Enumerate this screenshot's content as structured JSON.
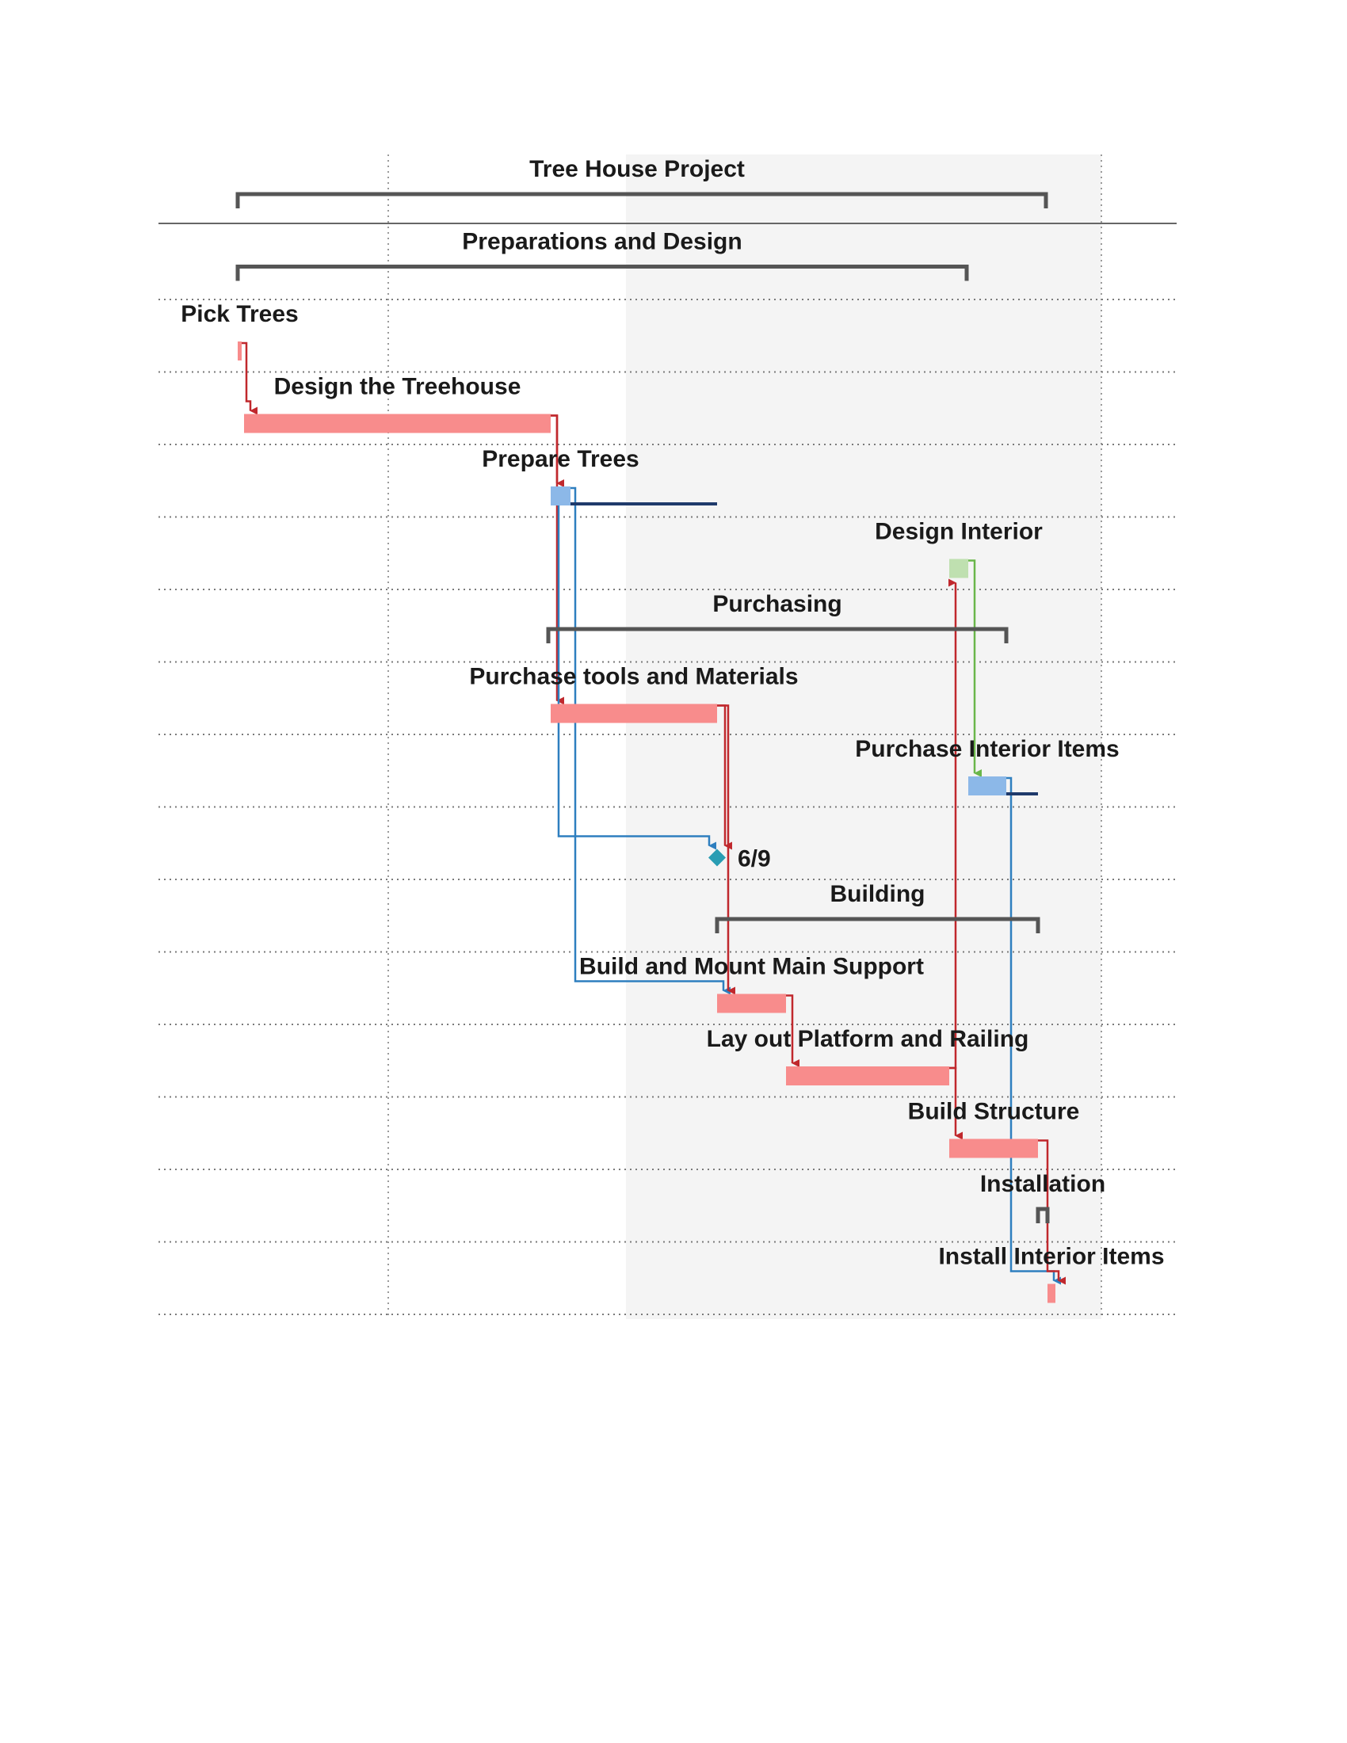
{
  "chart_data": {
    "type": "gantt",
    "title": "",
    "xlabel": "",
    "ylabel": "",
    "grid": true,
    "colors": {
      "critical_task": "#f88c8c",
      "noncritical_task": "#8cb8e8",
      "completed_task": "#bfe0b0",
      "summary": "#555555",
      "milestone": "#2a9db3",
      "critical_link": "#c0282d",
      "noncritical_link": "#2e7fbf",
      "interior_link": "#6ab64a",
      "slack": "#1f3a6b",
      "shade": "#f4f4f4"
    },
    "tasks": [
      {
        "id": "t1",
        "name": "Tree House Project",
        "kind": "summary",
        "start": 0.0,
        "end": 10.2
      },
      {
        "id": "t2",
        "name": "Preparations and Design",
        "kind": "summary",
        "start": 0.0,
        "end": 9.2
      },
      {
        "id": "t3",
        "name": "Pick Trees",
        "kind": "task",
        "critical": true,
        "start": 0.0,
        "end": 0.05
      },
      {
        "id": "t4",
        "name": "Design the Treehouse",
        "kind": "task",
        "critical": true,
        "start": 0.08,
        "end": 3.95
      },
      {
        "id": "t5",
        "name": "Prepare Trees",
        "kind": "task",
        "critical": false,
        "start": 3.95,
        "end": 4.2,
        "slack_end": 6.05
      },
      {
        "id": "t6",
        "name": "Design Interior",
        "kind": "task",
        "critical": false,
        "completed": true,
        "start": 8.98,
        "end": 9.22
      },
      {
        "id": "t7",
        "name": "Purchasing",
        "kind": "summary",
        "start": 3.92,
        "end": 9.7
      },
      {
        "id": "t8",
        "name": "Purchase tools and Materials",
        "kind": "task",
        "critical": true,
        "start": 3.95,
        "end": 6.05
      },
      {
        "id": "t9",
        "name": "Purchase Interior Items",
        "kind": "task",
        "critical": false,
        "start": 9.22,
        "end": 9.7,
        "slack_end": 10.1
      },
      {
        "id": "t10",
        "name": "6/9",
        "kind": "milestone",
        "at": 6.05
      },
      {
        "id": "t11",
        "name": "Building",
        "kind": "summary",
        "start": 6.05,
        "end": 10.1
      },
      {
        "id": "t12",
        "name": "Build and Mount Main Support",
        "kind": "task",
        "critical": true,
        "start": 6.05,
        "end": 6.92
      },
      {
        "id": "t13",
        "name": "Lay out Platform and Railing",
        "kind": "task",
        "critical": true,
        "start": 6.92,
        "end": 8.98
      },
      {
        "id": "t14",
        "name": "Build Structure",
        "kind": "task",
        "critical": true,
        "start": 8.98,
        "end": 10.1
      },
      {
        "id": "t15",
        "name": "Installation",
        "kind": "summary",
        "start": 10.1,
        "end": 10.22
      },
      {
        "id": "t16",
        "name": "Install Interior Items",
        "kind": "task",
        "critical": true,
        "start": 10.22,
        "end": 10.32
      }
    ],
    "links": [
      {
        "from": "t3",
        "to": "t4",
        "type": "critical"
      },
      {
        "from": "t4",
        "to": "t5",
        "type": "critical"
      },
      {
        "from": "t4",
        "to": "t8",
        "type": "critical"
      },
      {
        "from": "t5",
        "to": "t10",
        "type": "noncritical"
      },
      {
        "from": "t5",
        "to": "t12",
        "type": "noncritical"
      },
      {
        "from": "t8",
        "to": "t10",
        "type": "critical"
      },
      {
        "from": "t8",
        "to": "t12",
        "type": "critical"
      },
      {
        "from": "t12",
        "to": "t13",
        "type": "critical"
      },
      {
        "from": "t13",
        "to": "t6",
        "type": "critical"
      },
      {
        "from": "t13",
        "to": "t14",
        "type": "critical"
      },
      {
        "from": "t6",
        "to": "t9",
        "type": "interior"
      },
      {
        "from": "t9",
        "to": "t16",
        "type": "noncritical"
      },
      {
        "from": "t14",
        "to": "t16",
        "type": "critical"
      }
    ]
  }
}
